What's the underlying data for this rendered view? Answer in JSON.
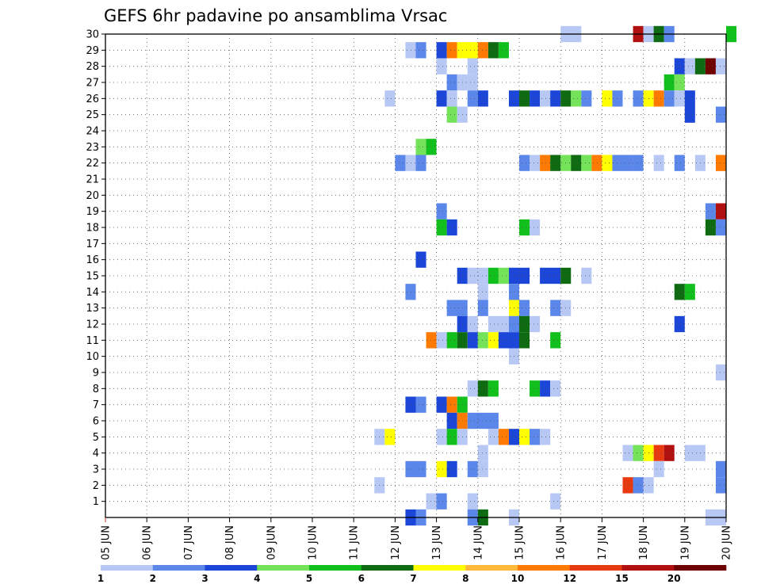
{
  "chart_data": {
    "type": "heatmap",
    "title": "GEFS 6hr padavine po ansamblima Vrsac",
    "xlabel": "",
    "ylabel": "",
    "x_axis": {
      "unit": "day of June",
      "range": [
        5,
        20
      ],
      "step_hours": 6,
      "tick_labels": [
        "05 JUN",
        "06 JUN",
        "07 JUN",
        "08 JUN",
        "09 JUN",
        "10 JUN",
        "11 JUN",
        "12 JUN",
        "13 JUN",
        "14 JUN",
        "15 JUN",
        "16 JUN",
        "17 JUN",
        "18 JUN",
        "19 JUN",
        "20 JUN"
      ]
    },
    "y_axis": {
      "label_meaning": "ensemble member",
      "range": [
        0,
        30
      ],
      "tick_labels": [
        "1",
        "2",
        "3",
        "4",
        "5",
        "6",
        "7",
        "8",
        "9",
        "10",
        "11",
        "12",
        "13",
        "14",
        "15",
        "16",
        "17",
        "18",
        "19",
        "20",
        "21",
        "22",
        "23",
        "24",
        "25",
        "26",
        "27",
        "28",
        "29",
        "30"
      ]
    },
    "grid": true,
    "colorbar": {
      "placement": "bottom",
      "labels": [
        "1",
        "2",
        "3",
        "4",
        "5",
        "6",
        "7",
        "8",
        "10",
        "12",
        "15",
        "20"
      ],
      "colors": [
        "#b7c8f5",
        "#5b87ea",
        "#1c46d8",
        "#74e35a",
        "#11bf1d",
        "#0f6b12",
        "#ffff00",
        "#ffb83a",
        "#ff7a00",
        "#e83a10",
        "#b01010",
        "#6e0000"
      ]
    },
    "cells_encoding": "member, start day of June, number of 6-hour steps, color level (1-12 as in colorbar)",
    "cells": [
      [
        30,
        16,
        2,
        1
      ],
      [
        30,
        17.75,
        1,
        11
      ],
      [
        30,
        18,
        2,
        1
      ],
      [
        30,
        18.25,
        1,
        6
      ],
      [
        30,
        18.5,
        1,
        2
      ],
      [
        30,
        20,
        1,
        5
      ],
      [
        29,
        12.25,
        1,
        1
      ],
      [
        29,
        12.5,
        1,
        2
      ],
      [
        29,
        13,
        1,
        3
      ],
      [
        29,
        13.25,
        1,
        9
      ],
      [
        29,
        13.5,
        2,
        7
      ],
      [
        29,
        14,
        1,
        9
      ],
      [
        29,
        14.25,
        1,
        6
      ],
      [
        29,
        14.5,
        1,
        5
      ],
      [
        28,
        13,
        1,
        1
      ],
      [
        28,
        13.75,
        1,
        1
      ],
      [
        28,
        18.75,
        1,
        3
      ],
      [
        28,
        19,
        1,
        1
      ],
      [
        28,
        19.25,
        1,
        6
      ],
      [
        28,
        19.5,
        1,
        12
      ],
      [
        28,
        19.75,
        1,
        1
      ],
      [
        27,
        13.25,
        1,
        2
      ],
      [
        27,
        13.5,
        1,
        1
      ],
      [
        27,
        13.75,
        1,
        1
      ],
      [
        27,
        18.5,
        1,
        5
      ],
      [
        27,
        18.75,
        1,
        4
      ],
      [
        26,
        11.75,
        1,
        1
      ],
      [
        26,
        13,
        1,
        3
      ],
      [
        26,
        13.25,
        1,
        1
      ],
      [
        26,
        13.75,
        1,
        2
      ],
      [
        26,
        14,
        1,
        3
      ],
      [
        26,
        14.75,
        1,
        3
      ],
      [
        26,
        15,
        1,
        6
      ],
      [
        26,
        15.25,
        1,
        3
      ],
      [
        26,
        15.5,
        1,
        1
      ],
      [
        26,
        15.75,
        1,
        3
      ],
      [
        26,
        16,
        1,
        6
      ],
      [
        26,
        16.25,
        1,
        4
      ],
      [
        26,
        16.5,
        1,
        2
      ],
      [
        26,
        17,
        1,
        7
      ],
      [
        26,
        17.25,
        1,
        2
      ],
      [
        26,
        17.75,
        1,
        2
      ],
      [
        26,
        18,
        1,
        7
      ],
      [
        26,
        18.25,
        1,
        9
      ],
      [
        26,
        18.5,
        1,
        2
      ],
      [
        26,
        18.75,
        1,
        1
      ],
      [
        26,
        19,
        1,
        3
      ],
      [
        25,
        13.25,
        1,
        4
      ],
      [
        25,
        13.5,
        1,
        1
      ],
      [
        25,
        19,
        1,
        3
      ],
      [
        25,
        19.75,
        1,
        2
      ],
      [
        23,
        12.5,
        1,
        4
      ],
      [
        23,
        12.75,
        1,
        5
      ],
      [
        22,
        12,
        1,
        2
      ],
      [
        22,
        12.25,
        1,
        1
      ],
      [
        22,
        12.5,
        1,
        2
      ],
      [
        22,
        15,
        1,
        2
      ],
      [
        22,
        15.25,
        1,
        1
      ],
      [
        22,
        15.5,
        1,
        9
      ],
      [
        22,
        15.75,
        1,
        6
      ],
      [
        22,
        16,
        1,
        4
      ],
      [
        22,
        16.25,
        1,
        6
      ],
      [
        22,
        16.5,
        1,
        4
      ],
      [
        22,
        16.75,
        1,
        9
      ],
      [
        22,
        17,
        1,
        7
      ],
      [
        22,
        17.25,
        2,
        2
      ],
      [
        22,
        17.75,
        1,
        2
      ],
      [
        22,
        18.25,
        1,
        1
      ],
      [
        22,
        18.75,
        1,
        2
      ],
      [
        22,
        19.25,
        1,
        1
      ],
      [
        22,
        19.75,
        1,
        9
      ],
      [
        19,
        13,
        1,
        2
      ],
      [
        19,
        19.5,
        1,
        2
      ],
      [
        19,
        19.75,
        1,
        11
      ],
      [
        18,
        13,
        1,
        5
      ],
      [
        18,
        13.25,
        1,
        3
      ],
      [
        18,
        15,
        1,
        5
      ],
      [
        18,
        15.25,
        1,
        1
      ],
      [
        18,
        19.5,
        1,
        6
      ],
      [
        18,
        19.75,
        1,
        2
      ],
      [
        16,
        12.5,
        1,
        3
      ],
      [
        15,
        13.5,
        1,
        3
      ],
      [
        15,
        13.75,
        2,
        1
      ],
      [
        15,
        14.25,
        1,
        5
      ],
      [
        15,
        14.5,
        1,
        4
      ],
      [
        15,
        14.75,
        2,
        3
      ],
      [
        15,
        15.5,
        2,
        3
      ],
      [
        15,
        16,
        1,
        6
      ],
      [
        15,
        16.5,
        1,
        1
      ],
      [
        14,
        12.25,
        1,
        2
      ],
      [
        14,
        14,
        1,
        1
      ],
      [
        14,
        14.75,
        1,
        2
      ],
      [
        14,
        18.75,
        1,
        6
      ],
      [
        14,
        19,
        1,
        5
      ],
      [
        13,
        13.25,
        2,
        2
      ],
      [
        13,
        14,
        1,
        2
      ],
      [
        13,
        14.75,
        1,
        7
      ],
      [
        13,
        15,
        1,
        2
      ],
      [
        13,
        15.75,
        1,
        2
      ],
      [
        13,
        16,
        1,
        1
      ],
      [
        12,
        13.5,
        1,
        3
      ],
      [
        12,
        13.75,
        1,
        1
      ],
      [
        12,
        14.25,
        2,
        1
      ],
      [
        12,
        14.75,
        1,
        2
      ],
      [
        12,
        15,
        1,
        6
      ],
      [
        12,
        15.25,
        1,
        1
      ],
      [
        12,
        18.75,
        1,
        3
      ],
      [
        11,
        12.75,
        1,
        9
      ],
      [
        11,
        13,
        1,
        1
      ],
      [
        11,
        13.25,
        1,
        5
      ],
      [
        11,
        13.5,
        1,
        6
      ],
      [
        11,
        13.75,
        1,
        3
      ],
      [
        11,
        14,
        1,
        4
      ],
      [
        11,
        14.25,
        1,
        7
      ],
      [
        11,
        14.5,
        2,
        3
      ],
      [
        11,
        15,
        1,
        6
      ],
      [
        11,
        15.75,
        1,
        5
      ],
      [
        10,
        14.75,
        1,
        1
      ],
      [
        9,
        19.75,
        1,
        1
      ],
      [
        8,
        13.75,
        1,
        1
      ],
      [
        8,
        14,
        1,
        6
      ],
      [
        8,
        14.25,
        1,
        5
      ],
      [
        8,
        15.25,
        1,
        5
      ],
      [
        8,
        15.5,
        1,
        3
      ],
      [
        8,
        15.75,
        1,
        1
      ],
      [
        7,
        12.25,
        1,
        3
      ],
      [
        7,
        12.5,
        1,
        2
      ],
      [
        7,
        13,
        1,
        3
      ],
      [
        7,
        13.25,
        1,
        9
      ],
      [
        7,
        13.5,
        1,
        5
      ],
      [
        6,
        13.25,
        1,
        3
      ],
      [
        6,
        13.5,
        1,
        9
      ],
      [
        6,
        13.75,
        3,
        2
      ],
      [
        5,
        11.5,
        1,
        1
      ],
      [
        5,
        11.75,
        1,
        7
      ],
      [
        5,
        13,
        1,
        1
      ],
      [
        5,
        13.25,
        1,
        5
      ],
      [
        5,
        13.5,
        1,
        1
      ],
      [
        5,
        14.25,
        1,
        1
      ],
      [
        5,
        14.5,
        1,
        9
      ],
      [
        5,
        14.75,
        1,
        3
      ],
      [
        5,
        15,
        1,
        7
      ],
      [
        5,
        15.25,
        1,
        2
      ],
      [
        5,
        15.5,
        1,
        1
      ],
      [
        4,
        14,
        1,
        1
      ],
      [
        4,
        17.5,
        1,
        1
      ],
      [
        4,
        17.75,
        1,
        4
      ],
      [
        4,
        18,
        1,
        7
      ],
      [
        4,
        18.25,
        1,
        10
      ],
      [
        4,
        18.5,
        1,
        11
      ],
      [
        4,
        19,
        2,
        1
      ],
      [
        3,
        12.25,
        2,
        2
      ],
      [
        3,
        13,
        1,
        7
      ],
      [
        3,
        13.25,
        1,
        3
      ],
      [
        3,
        13.75,
        1,
        2
      ],
      [
        3,
        14,
        1,
        1
      ],
      [
        3,
        18.25,
        1,
        1
      ],
      [
        3,
        19.75,
        1,
        2
      ],
      [
        2,
        11.5,
        1,
        1
      ],
      [
        2,
        17.5,
        1,
        10
      ],
      [
        2,
        17.75,
        1,
        2
      ],
      [
        2,
        18,
        1,
        1
      ],
      [
        2,
        19.75,
        1,
        2
      ],
      [
        1,
        12.75,
        1,
        1
      ],
      [
        1,
        13,
        1,
        2
      ],
      [
        1,
        13.75,
        1,
        1
      ],
      [
        1,
        15.75,
        1,
        1
      ],
      [
        0,
        12.25,
        1,
        3
      ],
      [
        0,
        12.5,
        1,
        2
      ],
      [
        0,
        13.75,
        1,
        2
      ],
      [
        0,
        14,
        1,
        6
      ],
      [
        0,
        14.75,
        1,
        1
      ],
      [
        0,
        19.5,
        2,
        1
      ]
    ]
  }
}
